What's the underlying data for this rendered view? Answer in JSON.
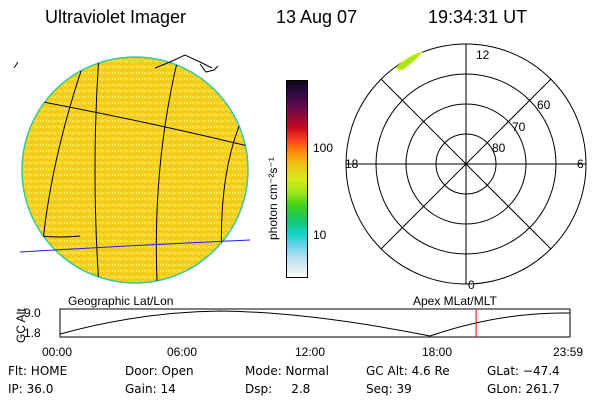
{
  "header": {
    "instrument": "Ultraviolet Imager",
    "date": "13 Aug 07",
    "time": "19:34:31 UT"
  },
  "colorbar": {
    "unit_label": "photon cm⁻²s⁻¹",
    "ticks": [
      "100",
      "10"
    ]
  },
  "polar_plot": {
    "mlt_labels": [
      "12",
      "6",
      "0",
      "18"
    ],
    "lat_labels": [
      "60",
      "70",
      "80"
    ]
  },
  "earth_panel": {
    "caption": "Geographic Lat/Lon"
  },
  "polar_panel": {
    "caption": "Apex MLat/MLT"
  },
  "altitude_plot": {
    "ylabel": "GC Alt",
    "yticks": [
      "9.0",
      "1.8"
    ],
    "xticks": [
      "00:00",
      "06:00",
      "12:00",
      "18:00",
      "23:59"
    ],
    "current_time_fraction": 0.816,
    "marker_color": "#ff0000"
  },
  "info": {
    "flt": "Flt: HOME",
    "ip": "IP: 36.0",
    "door": "Door: Open",
    "gain": "Gain: 14",
    "mode": "Mode: Normal",
    "dsp": "Dsp:     2.8",
    "gc_alt": "GC Alt: 4.6 Re",
    "seq": "Seq: 39",
    "glat": "GLat: −47.4",
    "glon": "GLon: 261.7"
  },
  "colors": {
    "earth_fill": "#f5d21e",
    "earth_edge": "#34c8a0",
    "equator_line": "#1a1aff",
    "aurora": "#a8e61e"
  }
}
